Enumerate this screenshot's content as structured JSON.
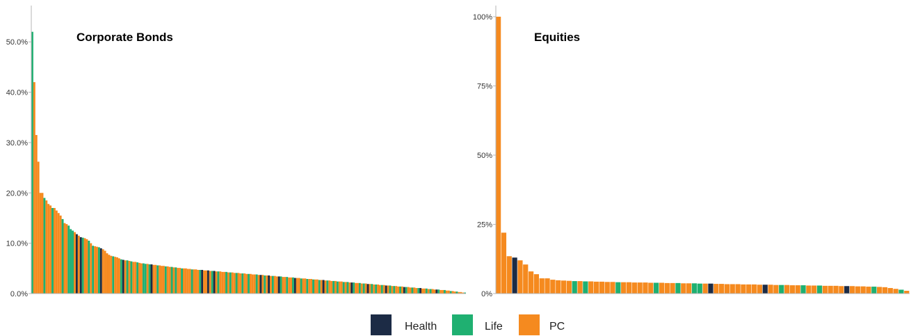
{
  "chart_data": [
    {
      "type": "bar",
      "title": "Corporate Bonds",
      "xlabel": "",
      "ylabel": "",
      "ylim": [
        0,
        0.55
      ],
      "yticks": [
        0,
        0.1,
        0.2,
        0.3,
        0.4,
        0.5
      ],
      "ytick_labels": [
        "0.0%",
        "10.0%",
        "20.0%",
        "30.0%",
        "40.0%",
        "50.0%"
      ],
      "grid": false,
      "color_key": [
        "PC",
        "Life",
        "Health"
      ],
      "bars": [
        [
          1,
          0.52
        ],
        [
          0,
          0.42
        ],
        [
          0,
          0.315
        ],
        [
          0,
          0.262
        ],
        [
          0,
          0.2
        ],
        [
          0,
          0.2
        ],
        [
          1,
          0.19
        ],
        [
          0,
          0.185
        ],
        [
          0,
          0.178
        ],
        [
          0,
          0.175
        ],
        [
          1,
          0.17
        ],
        [
          0,
          0.17
        ],
        [
          0,
          0.165
        ],
        [
          0,
          0.16
        ],
        [
          0,
          0.155
        ],
        [
          1,
          0.148
        ],
        [
          0,
          0.14
        ],
        [
          0,
          0.138
        ],
        [
          1,
          0.135
        ],
        [
          1,
          0.128
        ],
        [
          1,
          0.125
        ],
        [
          0,
          0.122
        ],
        [
          2,
          0.118
        ],
        [
          0,
          0.115
        ],
        [
          2,
          0.112
        ],
        [
          1,
          0.111
        ],
        [
          0,
          0.11
        ],
        [
          0,
          0.108
        ],
        [
          1,
          0.105
        ],
        [
          0,
          0.1
        ],
        [
          1,
          0.095
        ],
        [
          0,
          0.094
        ],
        [
          0,
          0.093
        ],
        [
          1,
          0.092
        ],
        [
          2,
          0.09
        ],
        [
          0,
          0.088
        ],
        [
          0,
          0.085
        ],
        [
          0,
          0.08
        ],
        [
          0,
          0.077
        ],
        [
          0,
          0.075
        ],
        [
          1,
          0.074
        ],
        [
          0,
          0.073
        ],
        [
          0,
          0.072
        ],
        [
          0,
          0.07
        ],
        [
          1,
          0.068
        ],
        [
          2,
          0.067
        ],
        [
          0,
          0.066
        ],
        [
          1,
          0.066
        ],
        [
          0,
          0.065
        ],
        [
          1,
          0.064
        ],
        [
          0,
          0.063
        ],
        [
          0,
          0.063
        ],
        [
          1,
          0.062
        ],
        [
          0,
          0.061
        ],
        [
          0,
          0.06
        ],
        [
          1,
          0.06
        ],
        [
          1,
          0.059
        ],
        [
          0,
          0.059
        ],
        [
          1,
          0.058
        ],
        [
          2,
          0.058
        ],
        [
          0,
          0.057
        ],
        [
          0,
          0.057
        ],
        [
          1,
          0.056
        ],
        [
          0,
          0.056
        ],
        [
          0,
          0.055
        ],
        [
          0,
          0.055
        ],
        [
          1,
          0.054
        ],
        [
          0,
          0.054
        ],
        [
          0,
          0.053
        ],
        [
          1,
          0.053
        ],
        [
          0,
          0.052
        ],
        [
          1,
          0.052
        ],
        [
          0,
          0.051
        ],
        [
          0,
          0.051
        ],
        [
          1,
          0.05
        ],
        [
          0,
          0.05
        ],
        [
          0,
          0.05
        ],
        [
          0,
          0.049
        ],
        [
          0,
          0.049
        ],
        [
          1,
          0.048
        ],
        [
          0,
          0.048
        ],
        [
          0,
          0.048
        ],
        [
          0,
          0.047
        ],
        [
          1,
          0.047
        ],
        [
          2,
          0.047
        ],
        [
          0,
          0.046
        ],
        [
          0,
          0.046
        ],
        [
          2,
          0.046
        ],
        [
          0,
          0.045
        ],
        [
          1,
          0.045
        ],
        [
          2,
          0.045
        ],
        [
          0,
          0.044
        ],
        [
          1,
          0.044
        ],
        [
          0,
          0.044
        ],
        [
          0,
          0.043
        ],
        [
          0,
          0.043
        ],
        [
          1,
          0.043
        ],
        [
          0,
          0.042
        ],
        [
          1,
          0.042
        ],
        [
          0,
          0.042
        ],
        [
          0,
          0.041
        ],
        [
          1,
          0.041
        ],
        [
          0,
          0.041
        ],
        [
          0,
          0.04
        ],
        [
          1,
          0.04
        ],
        [
          0,
          0.04
        ],
        [
          0,
          0.039
        ],
        [
          1,
          0.039
        ],
        [
          0,
          0.039
        ],
        [
          0,
          0.038
        ],
        [
          0,
          0.038
        ],
        [
          1,
          0.038
        ],
        [
          0,
          0.037
        ],
        [
          2,
          0.037
        ],
        [
          0,
          0.037
        ],
        [
          1,
          0.036
        ],
        [
          0,
          0.036
        ],
        [
          2,
          0.036
        ],
        [
          0,
          0.035
        ],
        [
          1,
          0.035
        ],
        [
          0,
          0.035
        ],
        [
          0,
          0.034
        ],
        [
          2,
          0.034
        ],
        [
          1,
          0.034
        ],
        [
          0,
          0.033
        ],
        [
          0,
          0.033
        ],
        [
          1,
          0.033
        ],
        [
          0,
          0.032
        ],
        [
          0,
          0.032
        ],
        [
          1,
          0.032
        ],
        [
          2,
          0.031
        ],
        [
          0,
          0.031
        ],
        [
          0,
          0.031
        ],
        [
          1,
          0.03
        ],
        [
          0,
          0.03
        ],
        [
          0,
          0.03
        ],
        [
          1,
          0.029
        ],
        [
          0,
          0.029
        ],
        [
          0,
          0.029
        ],
        [
          1,
          0.028
        ],
        [
          0,
          0.028
        ],
        [
          0,
          0.028
        ],
        [
          1,
          0.027
        ],
        [
          0,
          0.027
        ],
        [
          2,
          0.027
        ],
        [
          0,
          0.026
        ],
        [
          1,
          0.026
        ],
        [
          0,
          0.026
        ],
        [
          0,
          0.025
        ],
        [
          1,
          0.025
        ],
        [
          0,
          0.025
        ],
        [
          1,
          0.024
        ],
        [
          0,
          0.024
        ],
        [
          0,
          0.024
        ],
        [
          1,
          0.023
        ],
        [
          0,
          0.023
        ],
        [
          1,
          0.023
        ],
        [
          0,
          0.022
        ],
        [
          2,
          0.022
        ],
        [
          1,
          0.022
        ],
        [
          0,
          0.021
        ],
        [
          0,
          0.021
        ],
        [
          1,
          0.021
        ],
        [
          0,
          0.02
        ],
        [
          1,
          0.02
        ],
        [
          0,
          0.02
        ],
        [
          2,
          0.019
        ],
        [
          0,
          0.019
        ],
        [
          1,
          0.019
        ],
        [
          0,
          0.018
        ],
        [
          1,
          0.018
        ],
        [
          0,
          0.018
        ],
        [
          0,
          0.017
        ],
        [
          1,
          0.017
        ],
        [
          0,
          0.017
        ],
        [
          2,
          0.016
        ],
        [
          0,
          0.016
        ],
        [
          1,
          0.016
        ],
        [
          0,
          0.015
        ],
        [
          1,
          0.015
        ],
        [
          0,
          0.015
        ],
        [
          0,
          0.014
        ],
        [
          1,
          0.014
        ],
        [
          0,
          0.014
        ],
        [
          2,
          0.013
        ],
        [
          1,
          0.013
        ],
        [
          0,
          0.013
        ],
        [
          0,
          0.012
        ],
        [
          1,
          0.012
        ],
        [
          0,
          0.012
        ],
        [
          0,
          0.011
        ],
        [
          1,
          0.011
        ],
        [
          2,
          0.011
        ],
        [
          0,
          0.01
        ],
        [
          0,
          0.01
        ],
        [
          1,
          0.01
        ],
        [
          0,
          0.009
        ],
        [
          1,
          0.009
        ],
        [
          0,
          0.009
        ],
        [
          0,
          0.008
        ],
        [
          2,
          0.008
        ],
        [
          1,
          0.008
        ],
        [
          0,
          0.007
        ],
        [
          0,
          0.007
        ],
        [
          1,
          0.007
        ],
        [
          0,
          0.006
        ],
        [
          0,
          0.006
        ],
        [
          1,
          0.005
        ],
        [
          0,
          0.005
        ],
        [
          0,
          0.004
        ],
        [
          1,
          0.004
        ],
        [
          0,
          0.003
        ],
        [
          0,
          0.003
        ],
        [
          0,
          0.002
        ],
        [
          1,
          0.002
        ]
      ]
    },
    {
      "type": "bar",
      "title": "Equities",
      "xlabel": "",
      "ylabel": "",
      "ylim": [
        0,
        1.0
      ],
      "yticks": [
        0,
        0.25,
        0.5,
        0.75,
        1.0
      ],
      "ytick_labels": [
        "0%",
        "25%",
        "50%",
        "75%",
        "100%"
      ],
      "grid": false,
      "color_key": [
        "PC",
        "Life",
        "Health"
      ],
      "bars": [
        [
          0,
          1.0
        ],
        [
          0,
          0.22
        ],
        [
          0,
          0.135
        ],
        [
          2,
          0.13
        ],
        [
          0,
          0.12
        ],
        [
          0,
          0.105
        ],
        [
          0,
          0.08
        ],
        [
          0,
          0.07
        ],
        [
          0,
          0.055
        ],
        [
          0,
          0.055
        ],
        [
          0,
          0.05
        ],
        [
          0,
          0.048
        ],
        [
          0,
          0.047
        ],
        [
          0,
          0.046
        ],
        [
          1,
          0.045
        ],
        [
          0,
          0.045
        ],
        [
          1,
          0.044
        ],
        [
          0,
          0.044
        ],
        [
          0,
          0.043
        ],
        [
          0,
          0.043
        ],
        [
          0,
          0.042
        ],
        [
          0,
          0.042
        ],
        [
          1,
          0.041
        ],
        [
          0,
          0.041
        ],
        [
          0,
          0.041
        ],
        [
          0,
          0.04
        ],
        [
          0,
          0.04
        ],
        [
          0,
          0.04
        ],
        [
          0,
          0.039
        ],
        [
          1,
          0.039
        ],
        [
          0,
          0.039
        ],
        [
          0,
          0.038
        ],
        [
          0,
          0.038
        ],
        [
          1,
          0.038
        ],
        [
          0,
          0.037
        ],
        [
          0,
          0.037
        ],
        [
          1,
          0.037
        ],
        [
          1,
          0.036
        ],
        [
          0,
          0.036
        ],
        [
          2,
          0.036
        ],
        [
          0,
          0.035
        ],
        [
          0,
          0.035
        ],
        [
          0,
          0.034
        ],
        [
          0,
          0.034
        ],
        [
          0,
          0.034
        ],
        [
          0,
          0.033
        ],
        [
          0,
          0.033
        ],
        [
          0,
          0.033
        ],
        [
          0,
          0.032
        ],
        [
          2,
          0.032
        ],
        [
          0,
          0.032
        ],
        [
          0,
          0.031
        ],
        [
          1,
          0.031
        ],
        [
          0,
          0.031
        ],
        [
          0,
          0.03
        ],
        [
          0,
          0.03
        ],
        [
          1,
          0.03
        ],
        [
          0,
          0.029
        ],
        [
          0,
          0.029
        ],
        [
          1,
          0.029
        ],
        [
          0,
          0.028
        ],
        [
          0,
          0.028
        ],
        [
          0,
          0.028
        ],
        [
          0,
          0.027
        ],
        [
          2,
          0.027
        ],
        [
          0,
          0.027
        ],
        [
          0,
          0.026
        ],
        [
          0,
          0.026
        ],
        [
          0,
          0.025
        ],
        [
          1,
          0.025
        ],
        [
          0,
          0.024
        ],
        [
          0,
          0.023
        ],
        [
          0,
          0.02
        ],
        [
          0,
          0.017
        ],
        [
          1,
          0.014
        ],
        [
          0,
          0.01
        ]
      ]
    }
  ],
  "legend": {
    "items": [
      {
        "label": "Health",
        "color": "#1c2b45"
      },
      {
        "label": "Life",
        "color": "#1fb071"
      },
      {
        "label": "PC",
        "color": "#f58a1f"
      }
    ]
  },
  "colors": {
    "pc": "#f58a1f",
    "life": "#1fb071",
    "health": "#1c2b45",
    "axis": "#b5b5b5"
  }
}
